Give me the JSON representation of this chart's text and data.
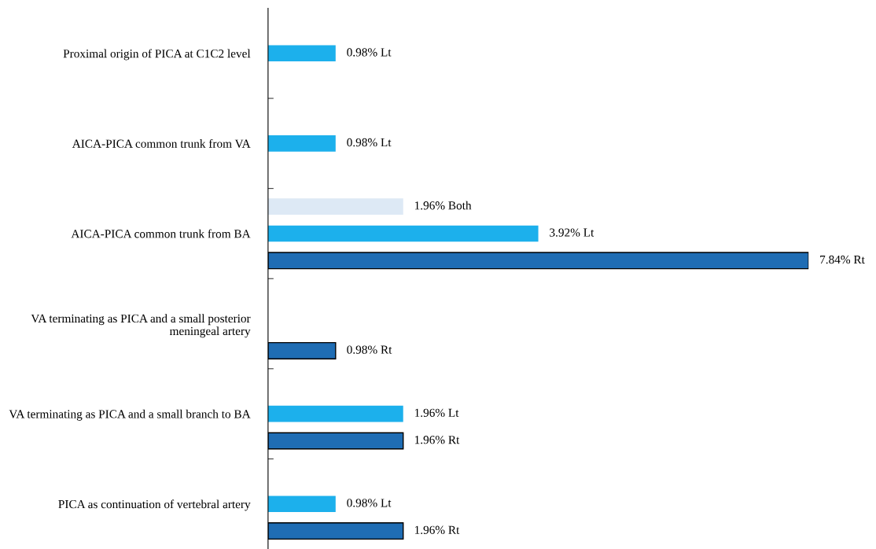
{
  "chart_data": {
    "type": "bar",
    "orientation": "horizontal",
    "categories": [
      "Proximal origin of PICA at C1C2 level",
      "AICA-PICA common trunk from VA",
      "AICA-PICA common trunk from BA",
      "VA terminating as PICA and a small posterior meningeal artery",
      "VA terminating as PICA and a small branch to BA",
      "PICA as continuation of vertebral artery"
    ],
    "series": [
      {
        "color": "#dde9f5",
        "values": [
          null,
          null,
          1.96,
          null,
          null,
          null
        ],
        "value_labels": [
          null,
          null,
          "1.96% Both",
          null,
          null,
          null
        ]
      },
      {
        "color": "#1cb0ec",
        "values": [
          0.98,
          0.98,
          3.92,
          null,
          1.96,
          0.98
        ],
        "value_labels": [
          "0.98% Lt",
          "0.98% Lt",
          "3.92% Lt",
          null,
          "1.96% Lt",
          "0.98% Lt"
        ]
      },
      {
        "color": "#1f6db4",
        "values": [
          null,
          null,
          7.84,
          0.98,
          1.96,
          1.96
        ],
        "value_labels": [
          null,
          null,
          "7.84% Rt",
          "0.98% Rt",
          "1.96% Rt",
          "1.96% Rt"
        ]
      }
    ],
    "tick_labels": "y",
    "grid": false,
    "legend": false
  }
}
